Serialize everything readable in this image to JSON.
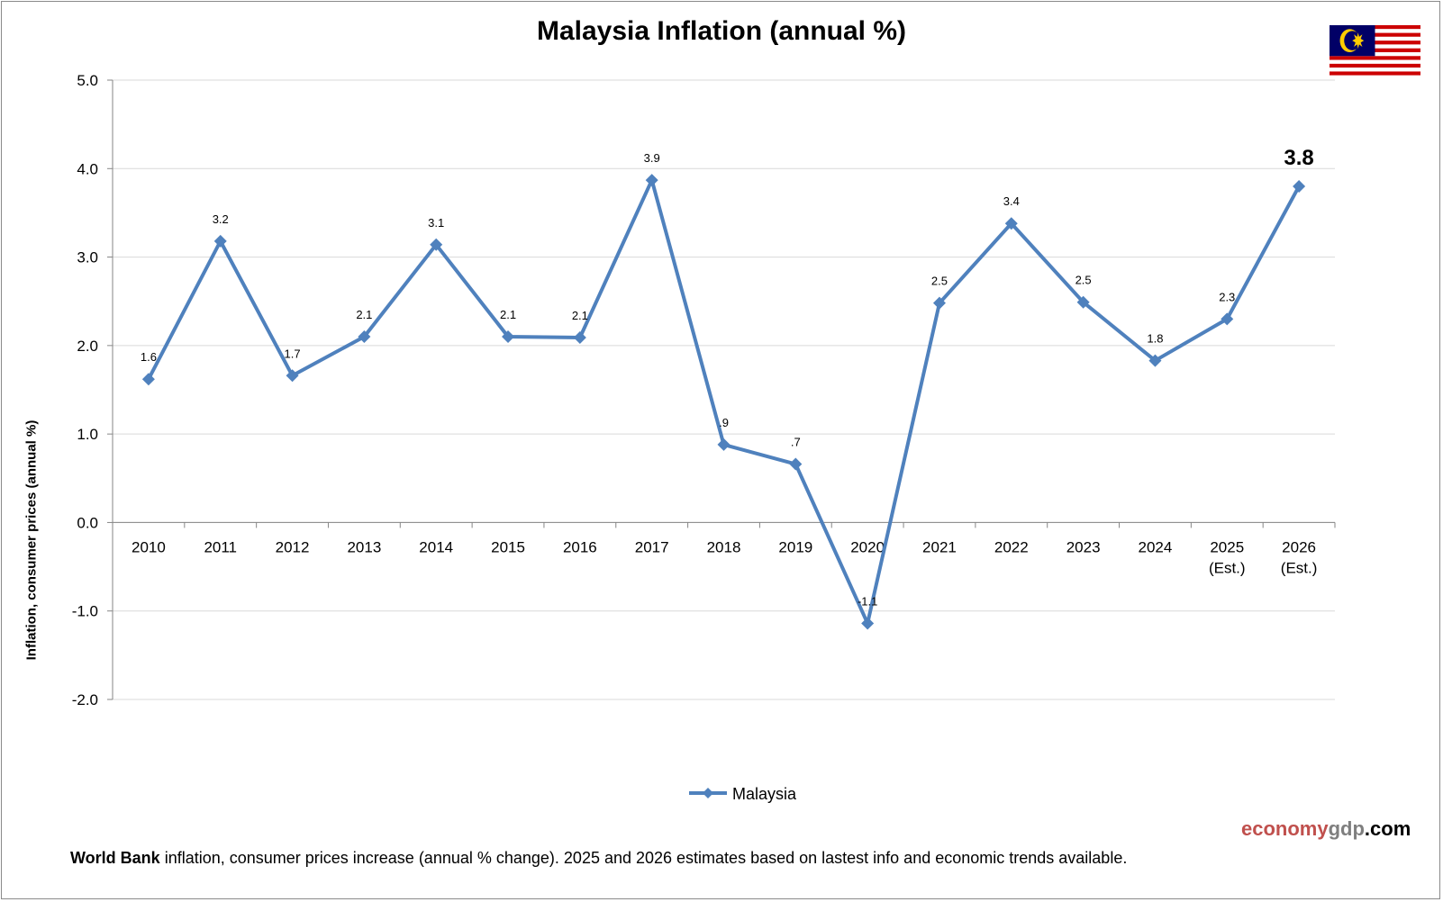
{
  "chart_data": {
    "type": "line",
    "title": "Malaysia Inflation (annual %)",
    "ylabel": "Inflation, consumer prices (annual %)",
    "xlabel": "",
    "ylim": [
      -2.0,
      5.0
    ],
    "yticks": [
      "5.0",
      "4.0",
      "3.0",
      "2.0",
      "1.0",
      "0.0",
      "-1.0",
      "-2.0"
    ],
    "categories": [
      "2010",
      "2011",
      "2012",
      "2013",
      "2014",
      "2015",
      "2016",
      "2017",
      "2018",
      "2019",
      "2020",
      "2021",
      "2022",
      "2023",
      "2024",
      "2025\n(Est.)",
      "2026\n(Est.)"
    ],
    "series": [
      {
        "name": "Malaysia",
        "color": "#4f81bd",
        "values": [
          1.62,
          3.18,
          1.66,
          2.1,
          3.14,
          2.1,
          2.09,
          3.87,
          0.88,
          0.66,
          -1.14,
          2.48,
          3.38,
          2.49,
          1.83,
          2.3,
          3.8
        ],
        "labels": [
          "1.6",
          "3.2",
          "1.7",
          "2.1",
          "3.1",
          "2.1",
          "2.1",
          "3.9",
          ".9",
          ".7",
          "-1.1",
          "2.5",
          "3.4",
          "2.5",
          "1.8",
          "2.3",
          "3.8"
        ]
      }
    ],
    "grid": true,
    "legend": "bottom-center",
    "highlight_last_label": true
  },
  "brand": {
    "part1": "economy",
    "part2": "gdp",
    "part3": ".com"
  },
  "footnote": {
    "bold": "World Bank",
    "text": " inflation, consumer prices increase (annual % change).  2025 and 2026 estimates based on lastest info and economic trends available."
  },
  "flag": {
    "name": "malaysia-flag-icon",
    "stripe_red": "#cc0001",
    "canton_blue": "#010066",
    "emblem_yellow": "#ffcc00"
  }
}
